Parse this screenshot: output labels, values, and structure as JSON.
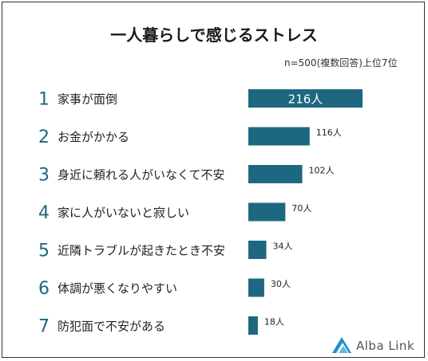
{
  "chart_data": {
    "type": "bar",
    "orientation": "horizontal",
    "title": "一人暮らしで感じるストレス",
    "note": "n=500(複数回答)上位7位",
    "ranks": [
      "1",
      "2",
      "3",
      "4",
      "5",
      "6",
      "7"
    ],
    "categories": [
      "家事が面倒",
      "お金がかかる",
      "身近に頼れる人がいなくて不安",
      "家に人がいないと寂しい",
      "近隣トラブルが起きたとき不安",
      "体調が悪くなりやすい",
      "防犯面で不安がある"
    ],
    "values": [
      216,
      116,
      102,
      70,
      34,
      30,
      18
    ],
    "value_labels": [
      "216人",
      "116人",
      "102人",
      "70人",
      "34人",
      "30人",
      "18人"
    ],
    "bar_color": "#1d6880",
    "xlim": [
      0,
      216
    ]
  },
  "logo": {
    "text": "Alba Link"
  }
}
